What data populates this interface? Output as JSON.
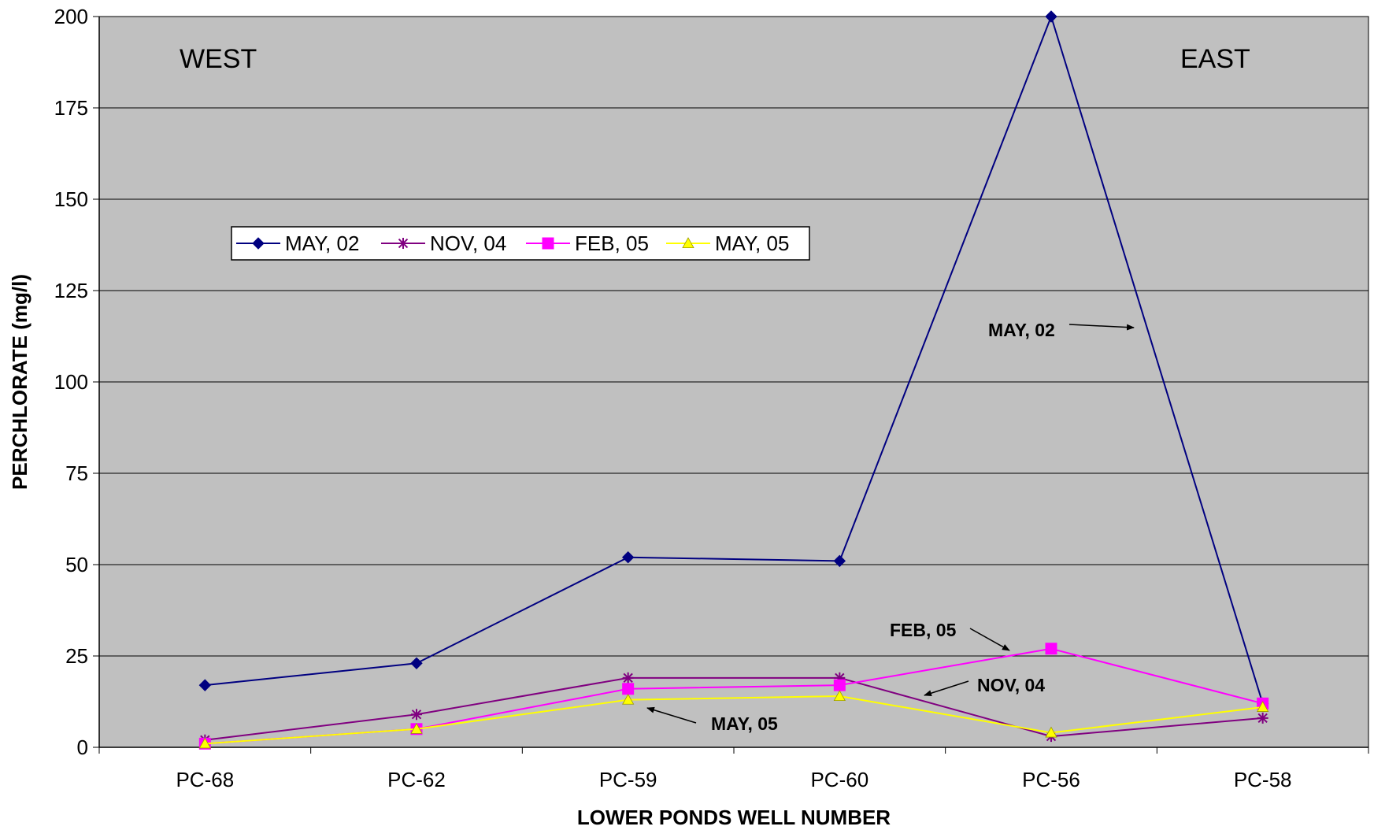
{
  "chart_data": {
    "type": "line",
    "categories": [
      "PC-68",
      "PC-62",
      "PC-59",
      "PC-60",
      "PC-56",
      "PC-58"
    ],
    "ylabel": "PERCHLORATE (mg/l)",
    "xlabel": "LOWER PONDS WELL NUMBER",
    "ylim": [
      0,
      200
    ],
    "yticks": [
      0,
      25,
      50,
      75,
      100,
      125,
      150,
      175,
      200
    ],
    "grid": true,
    "plot_background": "#c0c0c0",
    "legend_position": "upper-left",
    "series": [
      {
        "name": "MAY, 02",
        "color": "#000080",
        "marker": "diamond",
        "values": [
          17,
          23,
          52,
          51,
          200,
          12
        ]
      },
      {
        "name": "NOV, 04",
        "color": "#800080",
        "marker": "asterisk",
        "values": [
          2,
          9,
          19,
          19,
          3,
          8
        ]
      },
      {
        "name": "FEB, 05",
        "color": "#ff00ff",
        "marker": "square",
        "values": [
          1,
          5,
          16,
          17,
          27,
          12
        ]
      },
      {
        "name": "MAY, 05",
        "color": "#ffff00",
        "marker": "triangle",
        "values": [
          1,
          5,
          13,
          14,
          4,
          11
        ]
      }
    ],
    "region_labels": {
      "west": "WEST",
      "east": "EAST"
    },
    "annotations": [
      {
        "text": "MAY, 02",
        "series": 0
      },
      {
        "text": "FEB, 05",
        "series": 2
      },
      {
        "text": "NOV, 04",
        "series": 1
      },
      {
        "text": "MAY, 05",
        "series": 3
      }
    ]
  }
}
